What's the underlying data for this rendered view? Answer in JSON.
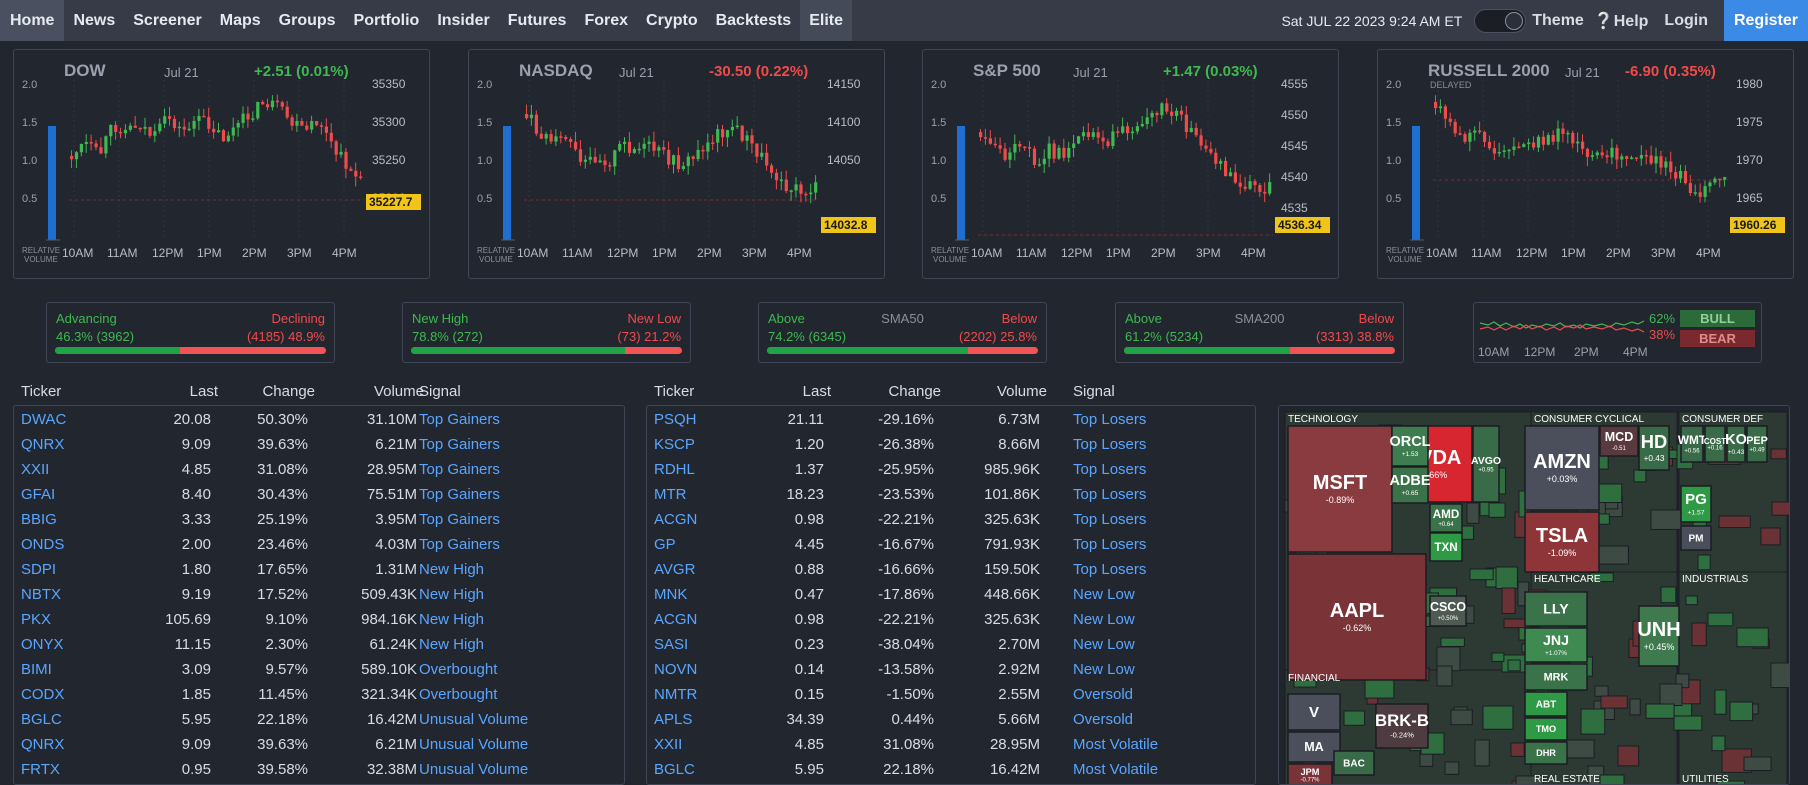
{
  "nav": {
    "items": [
      "Home",
      "News",
      "Screener",
      "Maps",
      "Groups",
      "Portfolio",
      "Insider",
      "Futures",
      "Forex",
      "Crypto",
      "Backtests",
      "Elite"
    ],
    "date": "Sat JUL 22 2023 9:24 AM ET",
    "theme": "Theme",
    "help": "Help",
    "login": "Login",
    "register": "Register"
  },
  "indices": [
    {
      "name": "DOW",
      "date": "Jul 21",
      "change": "+2.51 (0.01%)",
      "dir": "up",
      "last": "35227.7",
      "yticks": [
        "35350",
        "35300",
        "35250",
        "35200"
      ],
      "delayed": ""
    },
    {
      "name": "NASDAQ",
      "date": "Jul 21",
      "change": "-30.50 (0.22%)",
      "dir": "down",
      "last": "14032.8",
      "yticks": [
        "14150",
        "14100",
        "14050"
      ],
      "delayed": ""
    },
    {
      "name": "S&P 500",
      "date": "Jul 21",
      "change": "+1.47 (0.03%)",
      "dir": "up",
      "last": "4536.34",
      "yticks": [
        "4555",
        "4550",
        "4545",
        "4540",
        "4535"
      ],
      "delayed": ""
    },
    {
      "name": "RUSSELL 2000",
      "date": "Jul 21",
      "change": "-6.90 (0.35%)",
      "dir": "down",
      "last": "1960.26",
      "yticks": [
        "1980",
        "1975",
        "1970",
        "1965"
      ],
      "delayed": "DELAYED"
    }
  ],
  "chart_common": {
    "xticks": [
      "10AM",
      "11AM",
      "12PM",
      "1PM",
      "2PM",
      "3PM",
      "4PM"
    ],
    "vol_ticks": [
      "2.0",
      "1.5",
      "1.0",
      "0.5"
    ],
    "vol_label_1": "RELATIVE",
    "vol_label_2": "VOLUME"
  },
  "breadth": [
    {
      "left_title": "Advancing",
      "center": "",
      "right_title": "Declining",
      "left_value": "46.3% (3962)",
      "right_value": "(4185) 48.9%",
      "pct": 46.3
    },
    {
      "left_title": "New High",
      "center": "",
      "right_title": "New Low",
      "left_value": "78.8% (272)",
      "right_value": "(73) 21.2%",
      "pct": 78.8
    },
    {
      "left_title": "Above",
      "center": "SMA50",
      "right_title": "Below",
      "left_value": "74.2% (6345)",
      "right_value": "(2202) 25.8%",
      "pct": 74.2
    },
    {
      "left_title": "Above",
      "center": "SMA200",
      "right_title": "Below",
      "left_value": "61.2% (5234)",
      "right_value": "(3313) 38.8%",
      "pct": 61.2
    }
  ],
  "bullbear": {
    "bull_pct": "62%",
    "bear_pct": "38%",
    "bull": "BULL",
    "bear": "BEAR",
    "xticks": [
      "10AM",
      "12PM",
      "2PM",
      "4PM"
    ]
  },
  "table_headers": {
    "ticker": "Ticker",
    "last": "Last",
    "change": "Change",
    "volume": "Volume",
    "signal": "Signal"
  },
  "table_left": [
    [
      "DWAC",
      "20.08",
      "50.30%",
      "31.10M",
      "Top Gainers",
      "up"
    ],
    [
      "QNRX",
      "9.09",
      "39.63%",
      "6.21M",
      "Top Gainers",
      "up"
    ],
    [
      "XXII",
      "4.85",
      "31.08%",
      "28.95M",
      "Top Gainers",
      "up"
    ],
    [
      "GFAI",
      "8.40",
      "30.43%",
      "75.51M",
      "Top Gainers",
      "up"
    ],
    [
      "BBIG",
      "3.33",
      "25.19%",
      "3.95M",
      "Top Gainers",
      "up"
    ],
    [
      "ONDS",
      "2.00",
      "23.46%",
      "4.03M",
      "Top Gainers",
      "up"
    ],
    [
      "SDPI",
      "1.80",
      "17.65%",
      "1.31M",
      "New High",
      "up"
    ],
    [
      "NBTX",
      "9.19",
      "17.52%",
      "509.43K",
      "New High",
      "up"
    ],
    [
      "PKX",
      "105.69",
      "9.10%",
      "984.16K",
      "New High",
      "up"
    ],
    [
      "ONYX",
      "11.15",
      "2.30%",
      "61.24K",
      "New High",
      "up"
    ],
    [
      "BIMI",
      "3.09",
      "9.57%",
      "589.10K",
      "Overbought",
      "up"
    ],
    [
      "CODX",
      "1.85",
      "11.45%",
      "321.34K",
      "Overbought",
      "up"
    ],
    [
      "BGLC",
      "5.95",
      "22.18%",
      "16.42M",
      "Unusual Volume",
      "up"
    ],
    [
      "QNRX",
      "9.09",
      "39.63%",
      "6.21M",
      "Unusual Volume",
      "up"
    ],
    [
      "FRTX",
      "0.95",
      "39.58%",
      "32.38M",
      "Unusual Volume",
      "up"
    ]
  ],
  "table_right": [
    [
      "PSQH",
      "21.11",
      "-29.16%",
      "6.73M",
      "Top Losers",
      "down"
    ],
    [
      "KSCP",
      "1.20",
      "-26.38%",
      "8.66M",
      "Top Losers",
      "down"
    ],
    [
      "RDHL",
      "1.37",
      "-25.95%",
      "985.96K",
      "Top Losers",
      "down"
    ],
    [
      "MTR",
      "18.23",
      "-23.53%",
      "101.86K",
      "Top Losers",
      "down"
    ],
    [
      "ACGN",
      "0.98",
      "-22.21%",
      "325.63K",
      "Top Losers",
      "down"
    ],
    [
      "GP",
      "4.45",
      "-16.67%",
      "791.93K",
      "Top Losers",
      "down"
    ],
    [
      "AVGR",
      "0.88",
      "-16.66%",
      "159.50K",
      "Top Losers",
      "down"
    ],
    [
      "MNK",
      "0.47",
      "-17.86%",
      "448.66K",
      "New Low",
      "down"
    ],
    [
      "ACGN",
      "0.98",
      "-22.21%",
      "325.63K",
      "New Low",
      "down"
    ],
    [
      "SASI",
      "0.23",
      "-38.04%",
      "2.70M",
      "New Low",
      "down"
    ],
    [
      "NOVN",
      "0.14",
      "-13.58%",
      "2.92M",
      "New Low",
      "down"
    ],
    [
      "NMTR",
      "0.15",
      "-1.50%",
      "2.55M",
      "Oversold",
      "down"
    ],
    [
      "APLS",
      "34.39",
      "0.44%",
      "5.66M",
      "Oversold",
      "up"
    ],
    [
      "XXII",
      "4.85",
      "31.08%",
      "28.95M",
      "Most Volatile",
      "up"
    ],
    [
      "BGLC",
      "5.95",
      "22.18%",
      "16.42M",
      "Most Volatile",
      "up"
    ]
  ],
  "heatmap": {
    "sectors": [
      "TECHNOLOGY",
      "CONSUMER CYCLICAL",
      "CONSUMER DEF",
      "HEALTHCARE",
      "INDUSTRIALS",
      "FINANCIAL",
      "REAL ESTATE",
      "UTILITIES"
    ],
    "tiles": [
      {
        "t": "MSFT",
        "v": "-0.89%"
      },
      {
        "t": "AAPL",
        "v": "-0.62%"
      },
      {
        "t": "NVDA",
        "v": "-2.66%"
      },
      {
        "t": "AMZN",
        "v": "+0.03%"
      },
      {
        "t": "TSLA",
        "v": "-1.09%"
      },
      {
        "t": "LLY",
        "v": ""
      },
      {
        "t": "JNJ",
        "v": "+1.07%"
      },
      {
        "t": "UNH",
        "v": "+0.45%"
      },
      {
        "t": "MRK",
        "v": ""
      },
      {
        "t": "ABT",
        "v": ""
      },
      {
        "t": "TMO",
        "v": ""
      },
      {
        "t": "DHR",
        "v": ""
      },
      {
        "t": "PG",
        "v": "+1.57"
      },
      {
        "t": "PM",
        "v": ""
      },
      {
        "t": "V",
        "v": ""
      },
      {
        "t": "MA",
        "v": ""
      },
      {
        "t": "JPM",
        "v": "-0.77%"
      },
      {
        "t": "BAC",
        "v": ""
      },
      {
        "t": "BRK-B",
        "v": "-0.24%"
      },
      {
        "t": "HD",
        "v": "+0.43"
      },
      {
        "t": "MCD",
        "v": "-0.51"
      },
      {
        "t": "ORCL",
        "v": "+1.53"
      },
      {
        "t": "ADBE",
        "v": "+0.65"
      },
      {
        "t": "AVGO",
        "v": "+0.95"
      },
      {
        "t": "AMD",
        "v": "+0.64"
      },
      {
        "t": "TXN",
        "v": ""
      },
      {
        "t": "CSCO",
        "v": "+0.50%"
      },
      {
        "t": "WMT",
        "v": "+0.56"
      },
      {
        "t": "KO",
        "v": "+0.43"
      },
      {
        "t": "COST",
        "v": "+0.16"
      },
      {
        "t": "PEP",
        "v": "+0.49"
      }
    ]
  }
}
